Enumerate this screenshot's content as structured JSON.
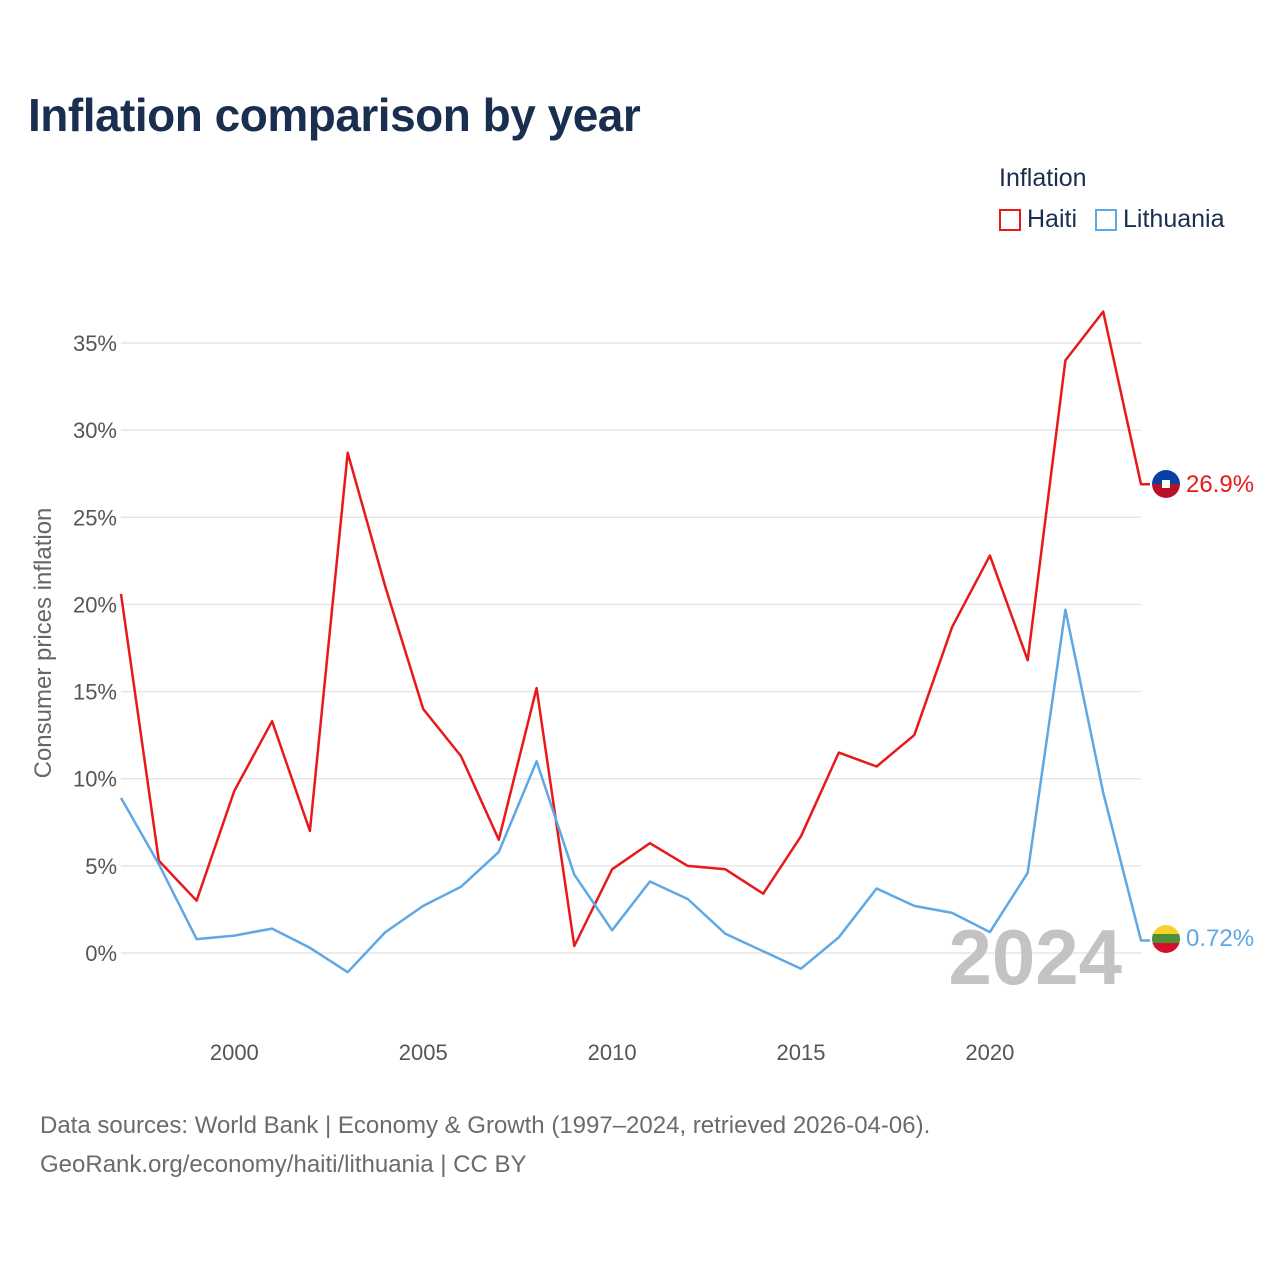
{
  "title": "Inflation comparison by year",
  "legend": {
    "title": "Inflation",
    "items": [
      {
        "label": "Haiti",
        "color": "#e8191b"
      },
      {
        "label": "Lithuania",
        "color": "#5fa8e6"
      }
    ]
  },
  "source": {
    "line1": "Data sources: World Bank | Economy & Growth (1997–2024, retrieved 2026-04-06).",
    "line2": "GeoRank.org/economy/haiti/lithuania | CC BY"
  },
  "chart_data": {
    "type": "line",
    "title": "Inflation comparison by year",
    "xlabel": "",
    "ylabel": "Consumer prices inflation",
    "x": [
      1997,
      1998,
      1999,
      2000,
      2001,
      2002,
      2003,
      2004,
      2005,
      2006,
      2007,
      2008,
      2009,
      2010,
      2011,
      2012,
      2013,
      2014,
      2015,
      2016,
      2017,
      2018,
      2019,
      2020,
      2021,
      2022,
      2023,
      2024
    ],
    "xlim": [
      1997,
      2024
    ],
    "ylim": [
      -3.5,
      38
    ],
    "xticks": [
      2000,
      2005,
      2010,
      2015,
      2020
    ],
    "yticks": [
      0,
      5,
      10,
      15,
      20,
      25,
      30,
      35
    ],
    "ytick_labels": [
      "0%",
      "5%",
      "10%",
      "15%",
      "20%",
      "25%",
      "30%",
      "35%"
    ],
    "grid": true,
    "watermark_year": "2024",
    "series": [
      {
        "name": "Haiti",
        "color": "#e8191b",
        "end_label": "26.9%",
        "values": [
          20.6,
          5.3,
          3.0,
          9.3,
          13.3,
          7.0,
          28.7,
          21.0,
          14.0,
          11.3,
          6.5,
          15.2,
          0.4,
          4.8,
          6.3,
          5.0,
          4.8,
          3.4,
          6.7,
          11.5,
          10.7,
          12.5,
          18.7,
          22.8,
          16.8,
          34.0,
          36.8,
          26.9
        ]
      },
      {
        "name": "Lithuania",
        "color": "#5fa8e6",
        "end_label": "0.72%",
        "values": [
          8.9,
          5.1,
          0.8,
          1.0,
          1.4,
          0.3,
          -1.1,
          1.2,
          2.7,
          3.8,
          5.8,
          11.0,
          4.5,
          1.3,
          4.1,
          3.1,
          1.1,
          0.1,
          -0.9,
          0.9,
          3.7,
          2.7,
          2.3,
          1.2,
          4.6,
          19.7,
          9.2,
          0.72
        ]
      }
    ]
  }
}
